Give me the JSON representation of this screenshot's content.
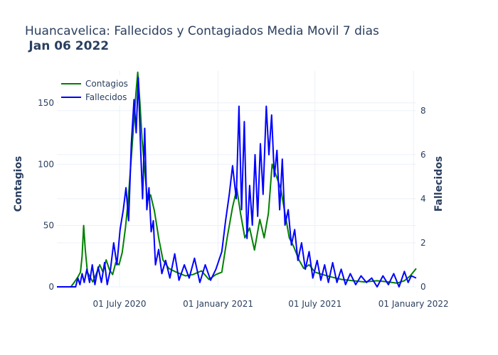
{
  "title_main": "Huancavelica: Fallecidos y Contagiados Media Movil 7 dias",
  "title_date": "Jan 06 2022",
  "chart_data": {
    "type": "line",
    "title": "Huancavelica: Fallecidos y Contagiados Media Movil 7 dias Jan 06 2022",
    "xlabel": "",
    "x_ticks": [
      "01 July 2020",
      "01 January 2021",
      "01 July 2021",
      "01 January 2022"
    ],
    "x_range": [
      "2020-03-06",
      "2022-01-06"
    ],
    "y_left": {
      "label": "Contagios",
      "range": [
        0,
        176
      ],
      "ticks": [
        0,
        50,
        100,
        150
      ]
    },
    "y_right": {
      "label": "Fallecidos",
      "range": [
        0,
        9.8
      ],
      "ticks": [
        0,
        2,
        4,
        6,
        8
      ]
    },
    "grid": true,
    "legend_position": "top-left",
    "series": [
      {
        "name": "Contagios",
        "axis": "left",
        "color": "#008000",
        "points": [
          [
            "2020-03-06",
            0
          ],
          [
            "2020-04-01",
            0
          ],
          [
            "2020-04-08",
            4
          ],
          [
            "2020-04-14",
            8
          ],
          [
            "2020-04-19",
            12
          ],
          [
            "2020-04-22",
            25
          ],
          [
            "2020-04-25",
            50
          ],
          [
            "2020-04-28",
            30
          ],
          [
            "2020-05-02",
            12
          ],
          [
            "2020-05-07",
            8
          ],
          [
            "2020-05-12",
            4
          ],
          [
            "2020-05-18",
            10
          ],
          [
            "2020-05-25",
            18
          ],
          [
            "2020-05-31",
            12
          ],
          [
            "2020-06-06",
            22
          ],
          [
            "2020-06-12",
            14
          ],
          [
            "2020-06-18",
            10
          ],
          [
            "2020-06-24",
            20
          ],
          [
            "2020-06-30",
            18
          ],
          [
            "2020-07-06",
            28
          ],
          [
            "2020-07-12",
            48
          ],
          [
            "2020-07-17",
            70
          ],
          [
            "2020-07-22",
            100
          ],
          [
            "2020-07-27",
            130
          ],
          [
            "2020-08-01",
            160
          ],
          [
            "2020-08-04",
            175
          ],
          [
            "2020-08-08",
            150
          ],
          [
            "2020-08-12",
            120
          ],
          [
            "2020-08-16",
            100
          ],
          [
            "2020-08-22",
            70
          ],
          [
            "2020-08-28",
            75
          ],
          [
            "2020-09-04",
            62
          ],
          [
            "2020-09-12",
            40
          ],
          [
            "2020-09-20",
            22
          ],
          [
            "2020-10-01",
            15
          ],
          [
            "2020-10-15",
            12
          ],
          [
            "2020-11-01",
            9
          ],
          [
            "2020-11-15",
            10
          ],
          [
            "2020-12-01",
            13
          ],
          [
            "2020-12-15",
            6
          ],
          [
            "2020-12-28",
            10
          ],
          [
            "2021-01-08",
            12
          ],
          [
            "2021-01-18",
            40
          ],
          [
            "2021-01-28",
            65
          ],
          [
            "2021-02-05",
            80
          ],
          [
            "2021-02-12",
            60
          ],
          [
            "2021-02-20",
            40
          ],
          [
            "2021-03-01",
            48
          ],
          [
            "2021-03-10",
            30
          ],
          [
            "2021-03-20",
            55
          ],
          [
            "2021-03-28",
            40
          ],
          [
            "2021-04-05",
            60
          ],
          [
            "2021-04-12",
            100
          ],
          [
            "2021-04-20",
            90
          ],
          [
            "2021-04-28",
            80
          ],
          [
            "2021-05-06",
            60
          ],
          [
            "2021-05-14",
            40
          ],
          [
            "2021-05-22",
            33
          ],
          [
            "2021-06-01",
            22
          ],
          [
            "2021-06-10",
            15
          ],
          [
            "2021-06-20",
            18
          ],
          [
            "2021-07-01",
            12
          ],
          [
            "2021-07-15",
            10
          ],
          [
            "2021-08-01",
            8
          ],
          [
            "2021-08-20",
            6
          ],
          [
            "2021-09-10",
            5
          ],
          [
            "2021-10-01",
            4
          ],
          [
            "2021-10-25",
            5
          ],
          [
            "2021-11-15",
            4
          ],
          [
            "2021-12-01",
            3
          ],
          [
            "2021-12-15",
            5
          ],
          [
            "2021-12-26",
            9
          ],
          [
            "2022-01-06",
            15
          ]
        ]
      },
      {
        "name": "Fallecidos",
        "axis": "right",
        "color": "#0000ff",
        "points": [
          [
            "2020-03-06",
            0
          ],
          [
            "2020-04-10",
            0
          ],
          [
            "2020-04-14",
            0.4
          ],
          [
            "2020-04-18",
            0.1
          ],
          [
            "2020-04-22",
            0.6
          ],
          [
            "2020-04-26",
            0.2
          ],
          [
            "2020-05-01",
            0.8
          ],
          [
            "2020-05-06",
            0.2
          ],
          [
            "2020-05-11",
            1.0
          ],
          [
            "2020-05-16",
            0.1
          ],
          [
            "2020-05-22",
            0.9
          ],
          [
            "2020-05-28",
            0.2
          ],
          [
            "2020-06-03",
            1.1
          ],
          [
            "2020-06-08",
            0.1
          ],
          [
            "2020-06-14",
            0.8
          ],
          [
            "2020-06-20",
            2.0
          ],
          [
            "2020-06-26",
            1.0
          ],
          [
            "2020-07-02",
            2.6
          ],
          [
            "2020-07-08",
            3.5
          ],
          [
            "2020-07-13",
            4.5
          ],
          [
            "2020-07-18",
            3.0
          ],
          [
            "2020-07-23",
            6.5
          ],
          [
            "2020-07-28",
            8.5
          ],
          [
            "2020-08-01",
            7.0
          ],
          [
            "2020-08-05",
            9.5
          ],
          [
            "2020-08-09",
            6.5
          ],
          [
            "2020-08-13",
            4.0
          ],
          [
            "2020-08-17",
            7.2
          ],
          [
            "2020-08-21",
            3.5
          ],
          [
            "2020-08-25",
            4.5
          ],
          [
            "2020-08-29",
            2.5
          ],
          [
            "2020-09-02",
            3.0
          ],
          [
            "2020-09-06",
            1.0
          ],
          [
            "2020-09-12",
            1.7
          ],
          [
            "2020-09-18",
            0.6
          ],
          [
            "2020-09-25",
            1.2
          ],
          [
            "2020-10-03",
            0.4
          ],
          [
            "2020-10-12",
            1.5
          ],
          [
            "2020-10-20",
            0.3
          ],
          [
            "2020-10-30",
            1.0
          ],
          [
            "2020-11-08",
            0.4
          ],
          [
            "2020-11-18",
            1.3
          ],
          [
            "2020-11-28",
            0.2
          ],
          [
            "2020-12-08",
            1.0
          ],
          [
            "2020-12-18",
            0.3
          ],
          [
            "2020-12-28",
            0.8
          ],
          [
            "2021-01-08",
            1.6
          ],
          [
            "2021-01-15",
            3.0
          ],
          [
            "2021-01-22",
            4.2
          ],
          [
            "2021-01-28",
            5.5
          ],
          [
            "2021-02-04",
            4.0
          ],
          [
            "2021-02-09",
            8.2
          ],
          [
            "2021-02-14",
            3.5
          ],
          [
            "2021-02-19",
            7.5
          ],
          [
            "2021-02-24",
            2.2
          ],
          [
            "2021-03-01",
            4.6
          ],
          [
            "2021-03-06",
            2.8
          ],
          [
            "2021-03-11",
            6.0
          ],
          [
            "2021-03-16",
            3.2
          ],
          [
            "2021-03-21",
            6.5
          ],
          [
            "2021-03-26",
            4.2
          ],
          [
            "2021-04-01",
            8.2
          ],
          [
            "2021-04-06",
            6.0
          ],
          [
            "2021-04-11",
            7.8
          ],
          [
            "2021-04-16",
            5.0
          ],
          [
            "2021-04-21",
            6.2
          ],
          [
            "2021-04-26",
            3.5
          ],
          [
            "2021-05-01",
            5.8
          ],
          [
            "2021-05-06",
            2.8
          ],
          [
            "2021-05-12",
            3.5
          ],
          [
            "2021-05-18",
            1.9
          ],
          [
            "2021-05-24",
            2.6
          ],
          [
            "2021-05-30",
            1.2
          ],
          [
            "2021-06-06",
            2.0
          ],
          [
            "2021-06-13",
            0.8
          ],
          [
            "2021-06-20",
            1.6
          ],
          [
            "2021-06-27",
            0.4
          ],
          [
            "2021-07-05",
            1.2
          ],
          [
            "2021-07-12",
            0.3
          ],
          [
            "2021-07-19",
            1.0
          ],
          [
            "2021-07-26",
            0.2
          ],
          [
            "2021-08-03",
            1.1
          ],
          [
            "2021-08-11",
            0.2
          ],
          [
            "2021-08-19",
            0.8
          ],
          [
            "2021-08-27",
            0.1
          ],
          [
            "2021-09-05",
            0.6
          ],
          [
            "2021-09-15",
            0.1
          ],
          [
            "2021-09-25",
            0.5
          ],
          [
            "2021-10-05",
            0.2
          ],
          [
            "2021-10-15",
            0.4
          ],
          [
            "2021-10-25",
            0.0
          ],
          [
            "2021-11-05",
            0.5
          ],
          [
            "2021-11-15",
            0.1
          ],
          [
            "2021-11-25",
            0.6
          ],
          [
            "2021-12-05",
            0.0
          ],
          [
            "2021-12-15",
            0.7
          ],
          [
            "2021-12-22",
            0.2
          ],
          [
            "2021-12-28",
            0.5
          ],
          [
            "2022-01-06",
            0.4
          ]
        ]
      }
    ]
  }
}
